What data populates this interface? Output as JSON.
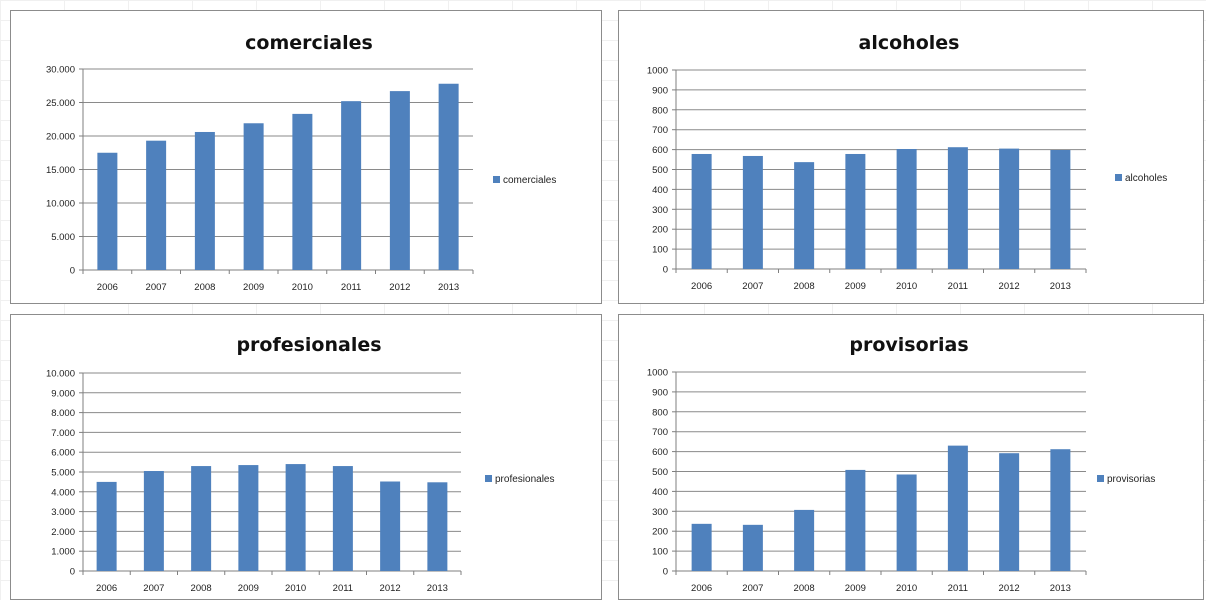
{
  "colors": {
    "bar": "#4f81bd",
    "grid": "#8a8a8a",
    "axis": "#7f7f7f"
  },
  "chart_data": [
    {
      "type": "bar",
      "title": "comerciales",
      "categories": [
        "2006",
        "2007",
        "2008",
        "2009",
        "2010",
        "2011",
        "2012",
        "2013"
      ],
      "series": [
        {
          "name": "comerciales",
          "values": [
            17500,
            19300,
            20600,
            21900,
            23300,
            25200,
            26700,
            27800
          ]
        }
      ],
      "ylim": [
        0,
        30000
      ],
      "yticks": [
        0,
        5000,
        10000,
        15000,
        20000,
        25000,
        30000
      ],
      "ytick_labels": [
        "0",
        "5.000",
        "10.000",
        "15.000",
        "20.000",
        "25.000",
        "30.000"
      ],
      "grid": true,
      "legend": "right"
    },
    {
      "type": "bar",
      "title": "alcoholes",
      "categories": [
        "2006",
        "2007",
        "2008",
        "2009",
        "2010",
        "2011",
        "2012",
        "2013"
      ],
      "series": [
        {
          "name": "alcoholes",
          "values": [
            578,
            568,
            537,
            578,
            603,
            612,
            605,
            598
          ]
        }
      ],
      "ylim": [
        0,
        1000
      ],
      "yticks": [
        0,
        100,
        200,
        300,
        400,
        500,
        600,
        700,
        800,
        900,
        1000
      ],
      "ytick_labels": [
        "0",
        "100",
        "200",
        "300",
        "400",
        "500",
        "600",
        "700",
        "800",
        "900",
        "1000"
      ],
      "grid": true,
      "legend": "right"
    },
    {
      "type": "bar",
      "title": "profesionales",
      "categories": [
        "2006",
        "2007",
        "2008",
        "2009",
        "2010",
        "2011",
        "2012",
        "2013"
      ],
      "series": [
        {
          "name": "profesionales",
          "values": [
            4500,
            5050,
            5300,
            5350,
            5400,
            5300,
            4520,
            4480
          ]
        }
      ],
      "ylim": [
        0,
        10000
      ],
      "yticks": [
        0,
        1000,
        2000,
        3000,
        4000,
        5000,
        6000,
        7000,
        8000,
        9000,
        10000
      ],
      "ytick_labels": [
        "0",
        "1.000",
        "2.000",
        "3.000",
        "4.000",
        "5.000",
        "6.000",
        "7.000",
        "8.000",
        "9.000",
        "10.000"
      ],
      "grid": true,
      "legend": "right"
    },
    {
      "type": "bar",
      "title": "provisorias",
      "categories": [
        "2006",
        "2007",
        "2008",
        "2009",
        "2010",
        "2011",
        "2012",
        "2013"
      ],
      "series": [
        {
          "name": "provisorias",
          "values": [
            237,
            232,
            307,
            508,
            485,
            630,
            592,
            612
          ]
        }
      ],
      "ylim": [
        0,
        1000
      ],
      "yticks": [
        0,
        100,
        200,
        300,
        400,
        500,
        600,
        700,
        800,
        900,
        1000
      ],
      "ytick_labels": [
        "0",
        "100",
        "200",
        "300",
        "400",
        "500",
        "600",
        "700",
        "800",
        "900",
        "1000"
      ],
      "grid": true,
      "legend": "right"
    }
  ]
}
